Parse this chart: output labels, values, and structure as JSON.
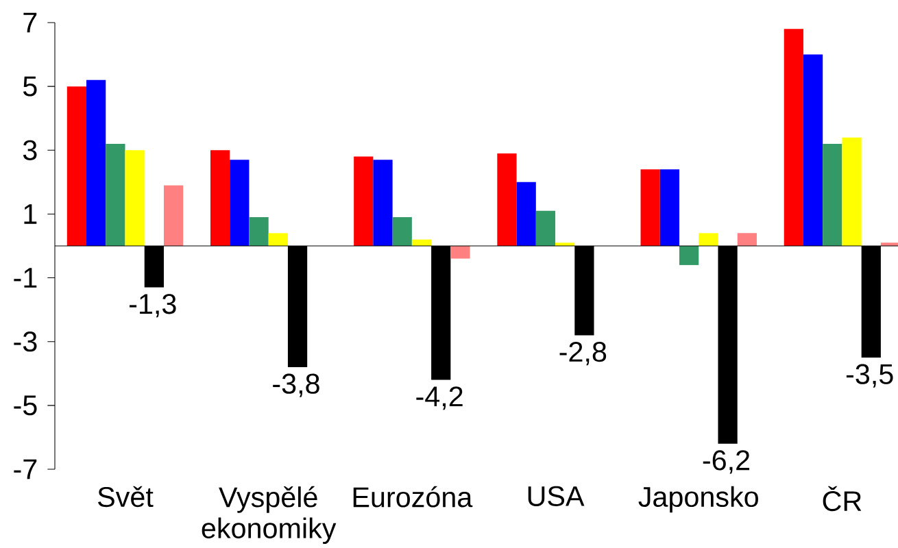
{
  "chart_data": {
    "type": "bar",
    "categories": [
      "Svět",
      "Vyspělé ekonomiky",
      "Eurozóna",
      "USA",
      "Japonsko",
      "ČR"
    ],
    "series": [
      {
        "color": "#ff0000",
        "values": [
          5.0,
          3.0,
          2.8,
          2.9,
          2.4,
          6.8
        ]
      },
      {
        "color": "#0000ff",
        "values": [
          5.2,
          2.7,
          2.7,
          2.0,
          2.4,
          6.0
        ]
      },
      {
        "color": "#339966",
        "values": [
          3.2,
          0.9,
          0.9,
          1.1,
          -0.6,
          3.2
        ]
      },
      {
        "color": "#ffff00",
        "values": [
          3.0,
          0.4,
          0.2,
          0.1,
          0.4,
          3.4
        ]
      },
      {
        "color": "#000000",
        "values": [
          -1.3,
          -3.8,
          -4.2,
          -2.8,
          -6.2,
          -3.5
        ],
        "value_labels": [
          "-1,3",
          "-3,8",
          "-4,2",
          "-2,8",
          "-6,2",
          "-3,5"
        ]
      },
      {
        "color": "#ff8080",
        "values": [
          1.9,
          null,
          -0.4,
          null,
          0.4,
          0.1
        ]
      }
    ],
    "ylim": [
      -7,
      7
    ],
    "yticks": [
      -7,
      -5,
      -3,
      -1,
      1,
      3,
      5,
      7
    ],
    "grid": false
  }
}
